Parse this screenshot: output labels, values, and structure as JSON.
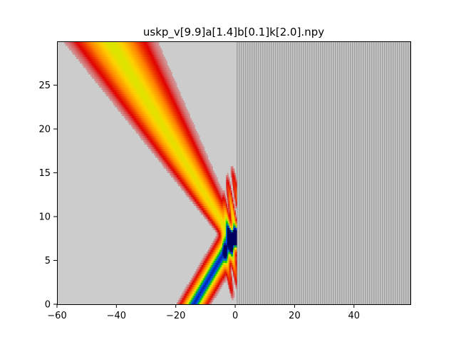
{
  "chart_data": {
    "type": "heatmap",
    "title": "uskp_v[9.9]a[1.4]b[0.1]k[2.0].npy",
    "xlabel": "",
    "ylabel": "",
    "xlim": [
      -60,
      59
    ],
    "ylim": [
      0,
      30
    ],
    "x_ticks": [
      -60,
      -40,
      -20,
      0,
      20,
      40
    ],
    "x_tick_labels": [
      "−60",
      "−40",
      "−20",
      "0",
      "20",
      "40"
    ],
    "y_ticks": [
      0,
      5,
      10,
      15,
      20,
      25
    ],
    "y_tick_labels": [
      "0",
      "5",
      "10",
      "15",
      "20",
      "25"
    ],
    "grid": false,
    "legend": "none",
    "background_color": "#cccccc",
    "barrier_region": {
      "x_start": 0.5,
      "x_end": 59,
      "pattern": "fine vertical stripes"
    },
    "colormap": [
      "#cccccc",
      "#e00000",
      "#ff8000",
      "#ffd000",
      "#c8f000",
      "#00c800",
      "#0050ff",
      "#000060"
    ],
    "beams": [
      {
        "name": "incident",
        "x_at_y0": -14,
        "x_at_apex": -1,
        "y_apex": 7.5,
        "peak_intensity": 0.95
      },
      {
        "name": "reflected",
        "x_at_apex": -1,
        "y_apex": 7.5,
        "x_at_top": -42,
        "y_top": 30,
        "peak_intensity": 0.55
      }
    ]
  }
}
